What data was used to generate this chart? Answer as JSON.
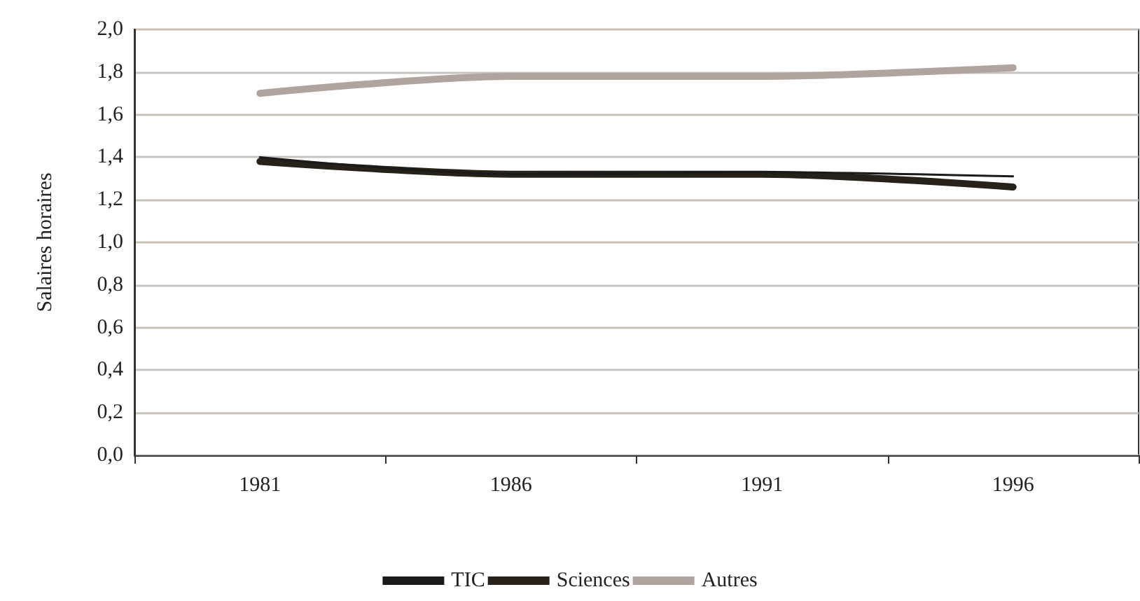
{
  "chart_data": {
    "type": "line",
    "ylabel": "Salaires horaires",
    "categories": [
      "1981",
      "1986",
      "1991",
      "1996"
    ],
    "series": [
      {
        "name": "TIC",
        "color": "#1a1a1a",
        "values": [
          1.4,
          1.32,
          1.33,
          1.31
        ]
      },
      {
        "name": "Sciences",
        "color": "#262219",
        "values": [
          1.38,
          1.32,
          1.32,
          1.26
        ]
      },
      {
        "name": "Autres",
        "color": "#b0a49f",
        "values": [
          1.7,
          1.78,
          1.78,
          1.82
        ]
      }
    ],
    "ylim": [
      0,
      2
    ],
    "yticks": [
      {
        "value": 0,
        "label": "0,0"
      },
      {
        "value": 0.2,
        "label": "0,2"
      },
      {
        "value": 0.4,
        "label": "0,4"
      },
      {
        "value": 0.6,
        "label": "0,6"
      },
      {
        "value": 0.8,
        "label": "0,8"
      },
      {
        "value": 1.0,
        "label": "1,0"
      },
      {
        "value": 1.2,
        "label": "1,2"
      },
      {
        "value": 1.4,
        "label": "1,4"
      },
      {
        "value": 1.6,
        "label": "1,6"
      },
      {
        "value": 1.8,
        "label": "1,8"
      },
      {
        "value": 2.0,
        "label": "2,0"
      }
    ],
    "grid": "y",
    "legend": "bottom",
    "marker": "none",
    "line_style": "solid"
  }
}
